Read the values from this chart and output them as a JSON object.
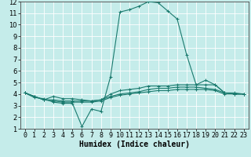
{
  "title": "",
  "xlabel": "Humidex (Indice chaleur)",
  "ylabel": "",
  "xlim": [
    -0.5,
    23.5
  ],
  "ylim": [
    1,
    12
  ],
  "xticks": [
    0,
    1,
    2,
    3,
    4,
    5,
    6,
    7,
    8,
    9,
    10,
    11,
    12,
    13,
    14,
    15,
    16,
    17,
    18,
    19,
    20,
    21,
    22,
    23
  ],
  "yticks": [
    1,
    2,
    3,
    4,
    5,
    6,
    7,
    8,
    9,
    10,
    11,
    12
  ],
  "bg_color": "#c5ecea",
  "grid_color": "#ffffff",
  "line_color": "#1a7a6e",
  "lines": [
    [
      4.1,
      3.7,
      3.6,
      3.3,
      3.2,
      3.2,
      1.2,
      2.7,
      2.5,
      5.5,
      11.1,
      11.3,
      11.6,
      12.0,
      11.9,
      11.2,
      10.5,
      7.4,
      4.8,
      5.2,
      4.8,
      4.1,
      4.0,
      4.0
    ],
    [
      4.1,
      3.8,
      3.5,
      3.8,
      3.6,
      3.6,
      3.5,
      3.4,
      3.5,
      4.0,
      4.3,
      4.4,
      4.5,
      4.7,
      4.7,
      4.7,
      4.8,
      4.8,
      4.8,
      4.8,
      4.8,
      4.1,
      4.1,
      4.0
    ],
    [
      4.1,
      3.8,
      3.5,
      3.5,
      3.4,
      3.4,
      3.4,
      3.4,
      3.5,
      3.8,
      4.0,
      4.1,
      4.2,
      4.4,
      4.5,
      4.5,
      4.6,
      4.6,
      4.6,
      4.5,
      4.4,
      4.1,
      4.0,
      4.0
    ],
    [
      4.1,
      3.8,
      3.5,
      3.4,
      3.3,
      3.3,
      3.3,
      3.3,
      3.4,
      3.7,
      3.9,
      4.0,
      4.1,
      4.2,
      4.3,
      4.3,
      4.4,
      4.4,
      4.4,
      4.4,
      4.3,
      4.0,
      4.0,
      4.0
    ]
  ],
  "tick_fontsize": 6,
  "xlabel_fontsize": 7,
  "lw": 0.8,
  "marker_size": 2.8
}
